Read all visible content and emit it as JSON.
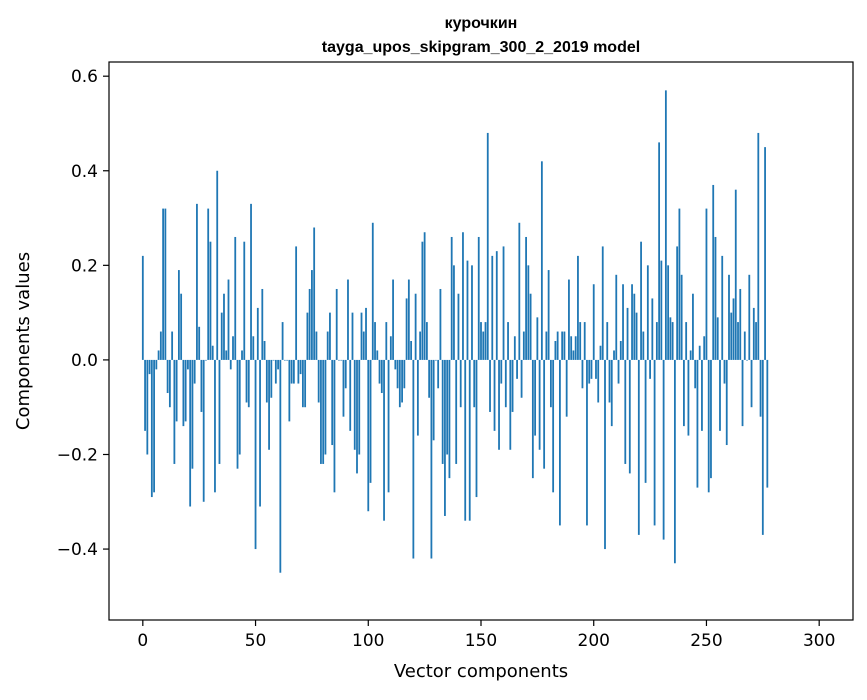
{
  "chart_data": {
    "type": "bar",
    "title": "курочкин",
    "subtitle": "tayga_upos_skipgram_300_2_2019 model",
    "xlabel": "Vector components",
    "ylabel": "Components values",
    "xlim": [
      -15,
      315
    ],
    "ylim": [
      -0.55,
      0.63
    ],
    "x_ticks": [
      0,
      50,
      100,
      150,
      200,
      250,
      300
    ],
    "x_tick_labels": [
      "0",
      "50",
      "100",
      "150",
      "200",
      "250",
      "300"
    ],
    "y_ticks": [
      -0.4,
      -0.2,
      0.0,
      0.2,
      0.4,
      0.6
    ],
    "y_tick_labels": [
      "−0.4",
      "−0.2",
      "0.0",
      "0.2",
      "0.4",
      "0.6"
    ],
    "bar_color": "#1f77b4",
    "grid": false,
    "values": [
      0.22,
      -0.15,
      -0.2,
      -0.03,
      -0.29,
      -0.28,
      -0.02,
      0.02,
      0.06,
      0.32,
      0.32,
      -0.07,
      -0.1,
      0.06,
      -0.22,
      -0.13,
      0.19,
      0.14,
      -0.14,
      -0.13,
      -0.02,
      -0.31,
      -0.23,
      -0.05,
      0.33,
      0.07,
      -0.11,
      -0.3,
      0.0,
      0.32,
      0.25,
      0.03,
      -0.28,
      0.4,
      -0.22,
      0.1,
      0.14,
      0.02,
      0.17,
      -0.02,
      0.05,
      0.26,
      -0.23,
      -0.2,
      0.02,
      0.25,
      -0.09,
      -0.1,
      0.33,
      0.05,
      -0.4,
      0.11,
      -0.31,
      0.15,
      0.04,
      -0.09,
      -0.19,
      -0.08,
      0.0,
      -0.05,
      -0.02,
      -0.45,
      0.08,
      0.0,
      0.0,
      -0.13,
      -0.05,
      -0.05,
      0.24,
      -0.05,
      -0.03,
      -0.1,
      -0.1,
      0.1,
      0.15,
      0.19,
      0.28,
      0.06,
      -0.09,
      -0.22,
      -0.22,
      -0.2,
      0.06,
      0.1,
      -0.18,
      -0.28,
      0.15,
      0.0,
      0.0,
      -0.12,
      -0.06,
      0.17,
      -0.15,
      0.1,
      -0.19,
      -0.24,
      -0.2,
      0.1,
      0.06,
      0.11,
      -0.32,
      -0.26,
      0.29,
      0.08,
      0.02,
      -0.05,
      -0.07,
      -0.34,
      0.08,
      -0.28,
      0.05,
      0.17,
      -0.02,
      -0.06,
      -0.1,
      -0.09,
      -0.06,
      0.13,
      0.17,
      0.04,
      -0.42,
      0.14,
      -0.16,
      0.06,
      0.25,
      0.27,
      0.08,
      -0.08,
      -0.42,
      -0.17,
      0.0,
      -0.06,
      0.15,
      -0.22,
      -0.33,
      -0.2,
      -0.25,
      0.26,
      0.2,
      -0.22,
      0.14,
      -0.1,
      0.27,
      -0.34,
      0.21,
      -0.34,
      0.2,
      -0.1,
      -0.29,
      0.26,
      0.08,
      0.06,
      0.08,
      0.48,
      -0.11,
      0.22,
      -0.15,
      0.23,
      -0.19,
      -0.05,
      0.24,
      -0.1,
      0.08,
      -0.19,
      -0.11,
      0.05,
      -0.04,
      0.29,
      -0.08,
      0.06,
      0.26,
      0.2,
      0.14,
      -0.25,
      -0.16,
      0.09,
      -0.19,
      0.42,
      -0.23,
      0.06,
      0.19,
      -0.1,
      -0.28,
      0.04,
      0.06,
      -0.35,
      0.06,
      0.06,
      -0.12,
      0.17,
      0.05,
      0.02,
      0.05,
      0.22,
      0.08,
      -0.06,
      0.08,
      -0.35,
      -0.05,
      -0.04,
      0.16,
      -0.04,
      -0.09,
      0.03,
      0.24,
      -0.4,
      0.08,
      -0.09,
      -0.14,
      0.02,
      0.18,
      -0.05,
      0.04,
      0.16,
      -0.22,
      0.11,
      -0.24,
      0.16,
      0.14,
      0.1,
      -0.37,
      0.25,
      0.06,
      -0.26,
      0.2,
      -0.04,
      0.13,
      -0.35,
      0.08,
      0.46,
      0.21,
      -0.38,
      0.57,
      0.2,
      0.09,
      0.08,
      -0.43,
      0.24,
      0.32,
      0.18,
      -0.14,
      0.08,
      -0.16,
      0.02,
      0.14,
      -0.06,
      -0.27,
      0.03,
      -0.15,
      0.05,
      0.32,
      -0.28,
      -0.25,
      0.37,
      0.26,
      0.09,
      -0.15,
      0.22,
      -0.05,
      -0.18,
      0.18,
      0.1,
      0.13,
      0.36,
      0.08,
      0.15,
      -0.14,
      0.06,
      0.0,
      0.18,
      -0.1,
      0.11,
      0.08,
      0.48,
      -0.12,
      -0.37,
      0.45,
      -0.27
    ],
    "values_comment": ""
  }
}
